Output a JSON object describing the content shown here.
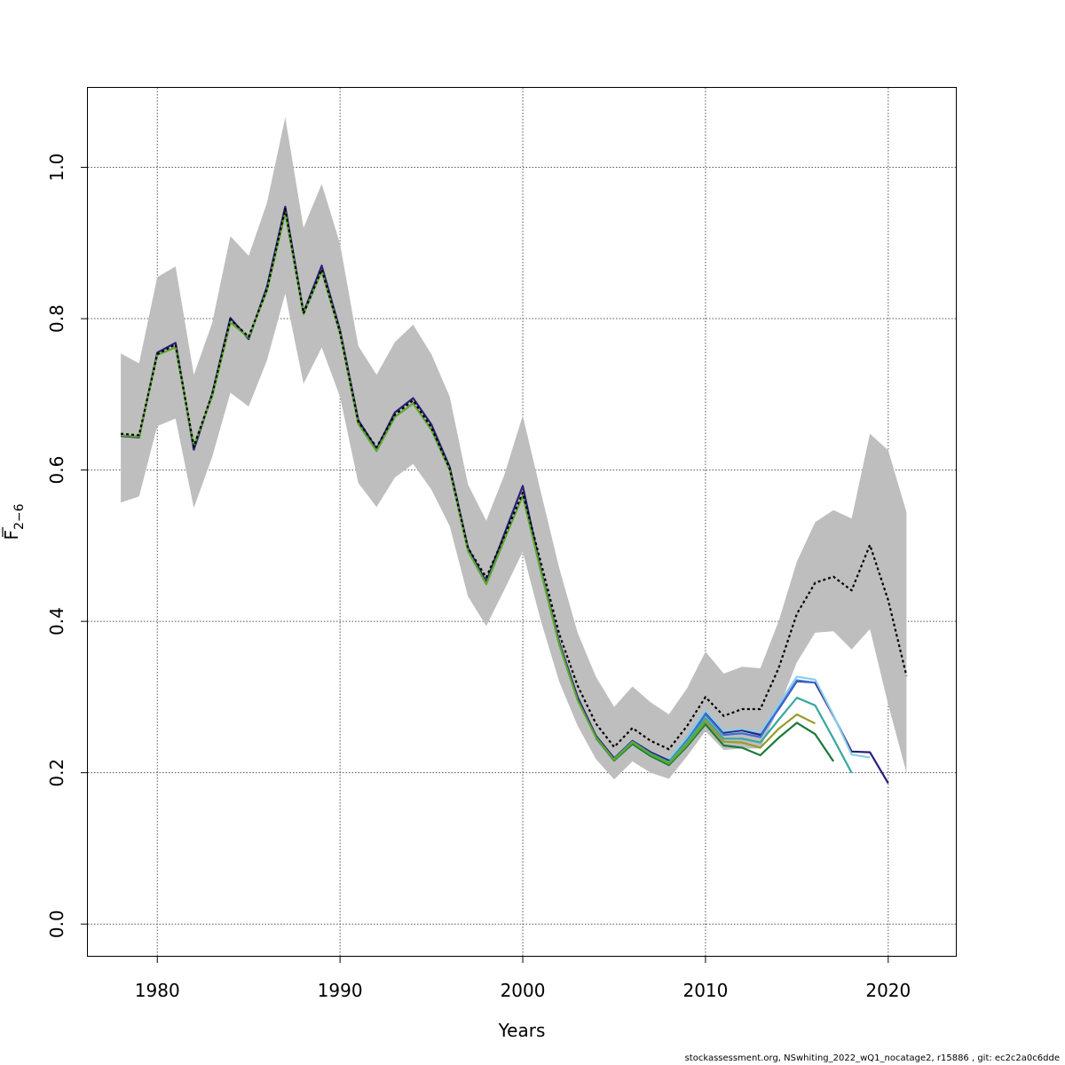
{
  "chart_data": {
    "type": "line",
    "xlabel": "Years",
    "ylabel_base": "F",
    "ylabel_sub": "2−6",
    "xlim": [
      1976.2,
      2023.7
    ],
    "ylim": [
      -0.042,
      1.105
    ],
    "x_ticks": [
      1980,
      1990,
      2000,
      2010,
      2020
    ],
    "x_tick_labels": [
      "1980",
      "1990",
      "2000",
      "2010",
      "2020"
    ],
    "y_ticks": [
      0.0,
      0.2,
      0.4,
      0.6,
      0.8,
      1.0
    ],
    "y_tick_labels": [
      "0.0",
      "0.2",
      "0.4",
      "0.6",
      "0.8",
      "1.0"
    ],
    "grid": true,
    "band": {
      "color": "#bebebe",
      "x": [
        1978,
        1979,
        1980,
        1981,
        1982,
        1983,
        1984,
        1985,
        1986,
        1987,
        1988,
        1989,
        1990,
        1991,
        1992,
        1993,
        1994,
        1995,
        1996,
        1997,
        1998,
        1999,
        2000,
        2001,
        2002,
        2003,
        2004,
        2005,
        2006,
        2007,
        2008,
        2009,
        2010,
        2011,
        2012,
        2013,
        2014,
        2015,
        2016,
        2017,
        2018,
        2019,
        2020,
        2021
      ],
      "lower": [
        0.557,
        0.565,
        0.658,
        0.668,
        0.55,
        0.617,
        0.702,
        0.684,
        0.745,
        0.833,
        0.714,
        0.762,
        0.697,
        0.583,
        0.551,
        0.59,
        0.608,
        0.574,
        0.526,
        0.433,
        0.394,
        0.442,
        0.492,
        0.4,
        0.32,
        0.262,
        0.218,
        0.191,
        0.215,
        0.2,
        0.192,
        0.222,
        0.255,
        0.23,
        0.232,
        0.232,
        0.285,
        0.346,
        0.385,
        0.387,
        0.363,
        0.39,
        0.29,
        0.2
      ],
      "upper": [
        0.754,
        0.741,
        0.855,
        0.869,
        0.726,
        0.794,
        0.909,
        0.883,
        0.953,
        1.066,
        0.92,
        0.978,
        0.899,
        0.764,
        0.726,
        0.769,
        0.792,
        0.753,
        0.697,
        0.581,
        0.533,
        0.594,
        0.672,
        0.57,
        0.47,
        0.385,
        0.327,
        0.287,
        0.314,
        0.293,
        0.277,
        0.312,
        0.36,
        0.331,
        0.34,
        0.338,
        0.4,
        0.479,
        0.531,
        0.547,
        0.536,
        0.648,
        0.626,
        0.544
      ]
    },
    "series": [
      {
        "color": "#000000",
        "dashed": true,
        "width": 2.2,
        "x": [
          1978,
          1979,
          1980,
          1981,
          1982,
          1983,
          1984,
          1985,
          1986,
          1987,
          1988,
          1989,
          1990,
          1991,
          1992,
          1993,
          1994,
          1995,
          1996,
          1997,
          1998,
          1999,
          2000,
          2001,
          2002,
          2003,
          2004,
          2005,
          2006,
          2007,
          2008,
          2009,
          2010,
          2011,
          2012,
          2013,
          2014,
          2015,
          2016,
          2017,
          2018,
          2019,
          2020,
          2021
        ],
        "values": [
          0.648,
          0.646,
          0.753,
          0.766,
          0.631,
          0.7,
          0.799,
          0.776,
          0.839,
          0.945,
          0.807,
          0.865,
          0.782,
          0.664,
          0.63,
          0.673,
          0.692,
          0.656,
          0.602,
          0.497,
          0.458,
          0.513,
          0.57,
          0.477,
          0.383,
          0.315,
          0.265,
          0.234,
          0.259,
          0.242,
          0.231,
          0.262,
          0.3,
          0.275,
          0.284,
          0.284,
          0.338,
          0.41,
          0.451,
          0.459,
          0.441,
          0.501,
          0.428,
          0.328
        ]
      },
      {
        "color": "#2a1f7a",
        "width": 2.2,
        "x": [
          1978,
          1979,
          1980,
          1981,
          1982,
          1983,
          1984,
          1985,
          1986,
          1987,
          1988,
          1989,
          1990,
          1991,
          1992,
          1993,
          1994,
          1995,
          1996,
          1997,
          1998,
          1999,
          2000,
          2001,
          2002,
          2003,
          2004,
          2005,
          2006,
          2007,
          2008,
          2009,
          2010,
          2011,
          2012,
          2013,
          2014,
          2015,
          2016,
          2017,
          2018,
          2019,
          2020
        ],
        "values": [
          0.645,
          0.643,
          0.755,
          0.768,
          0.627,
          0.7,
          0.801,
          0.773,
          0.842,
          0.948,
          0.808,
          0.87,
          0.785,
          0.666,
          0.628,
          0.676,
          0.695,
          0.66,
          0.604,
          0.497,
          0.452,
          0.516,
          0.579,
          0.467,
          0.372,
          0.3,
          0.249,
          0.219,
          0.242,
          0.227,
          0.216,
          0.247,
          0.281,
          0.253,
          0.256,
          0.25,
          0.284,
          0.321,
          0.319,
          0.275,
          0.228,
          0.227,
          0.186
        ]
      },
      {
        "color": "#87ceeb",
        "width": 2.2,
        "x": [
          2008,
          2009,
          2010,
          2011,
          2012,
          2013,
          2014,
          2015,
          2016,
          2017,
          2018,
          2019
        ],
        "values": [
          0.218,
          0.247,
          0.282,
          0.255,
          0.258,
          0.253,
          0.29,
          0.327,
          0.323,
          0.276,
          0.224,
          0.22
        ]
      },
      {
        "color": "#3a6fd8",
        "width": 2.2,
        "x": [
          2008,
          2009,
          2010,
          2011,
          2012,
          2013,
          2014,
          2015,
          2016
        ],
        "values": [
          0.213,
          0.243,
          0.277,
          0.25,
          0.252,
          0.247,
          0.285,
          0.322,
          0.319
        ]
      },
      {
        "color": "#38a89d",
        "width": 2.2,
        "x": [
          2005,
          2006,
          2007,
          2008,
          2009,
          2010,
          2011,
          2012,
          2013,
          2014,
          2015,
          2016,
          2017,
          2018
        ],
        "values": [
          0.218,
          0.241,
          0.225,
          0.214,
          0.241,
          0.272,
          0.245,
          0.245,
          0.24,
          0.27,
          0.299,
          0.289,
          0.245,
          0.2
        ]
      },
      {
        "color": "#9a9a2a",
        "width": 2.2,
        "x": [
          2005,
          2006,
          2007,
          2008,
          2009,
          2010,
          2011,
          2012,
          2013,
          2014,
          2015,
          2016
        ],
        "values": [
          0.217,
          0.24,
          0.224,
          0.212,
          0.238,
          0.268,
          0.241,
          0.24,
          0.233,
          0.258,
          0.277,
          0.265
        ]
      },
      {
        "color": "#1a7a3a",
        "width": 2.2,
        "x": [
          2004,
          2005,
          2006,
          2007,
          2008,
          2009,
          2010,
          2011,
          2012,
          2013,
          2014,
          2015,
          2016,
          2017
        ],
        "values": [
          0.246,
          0.216,
          0.238,
          0.222,
          0.21,
          0.235,
          0.264,
          0.236,
          0.233,
          0.223,
          0.246,
          0.266,
          0.251,
          0.215
        ]
      },
      {
        "color": "#5aaa30",
        "width": 2.2,
        "x": [
          1978,
          1979,
          1980,
          1981,
          1982,
          1983,
          1984,
          1985,
          1986,
          1987,
          1988,
          1989,
          1990,
          1991,
          1992,
          1993,
          1994,
          1995,
          1996,
          1997,
          1998,
          1999,
          2000,
          2001,
          2002,
          2003,
          2004,
          2005,
          2006,
          2007,
          2008,
          2009,
          2010
        ],
        "values": [
          0.646,
          0.644,
          0.752,
          0.762,
          0.632,
          0.697,
          0.795,
          0.775,
          0.837,
          0.94,
          0.806,
          0.863,
          0.781,
          0.661,
          0.625,
          0.67,
          0.688,
          0.653,
          0.6,
          0.493,
          0.449,
          0.508,
          0.566,
          0.465,
          0.369,
          0.296,
          0.247,
          0.217,
          0.24,
          0.224,
          0.212,
          0.237,
          0.267
        ]
      }
    ]
  },
  "footer": "stockassessment.org, NSwhiting_2022_wQ1_nocatage2, r15886 , git: ec2c2a0c6dde"
}
